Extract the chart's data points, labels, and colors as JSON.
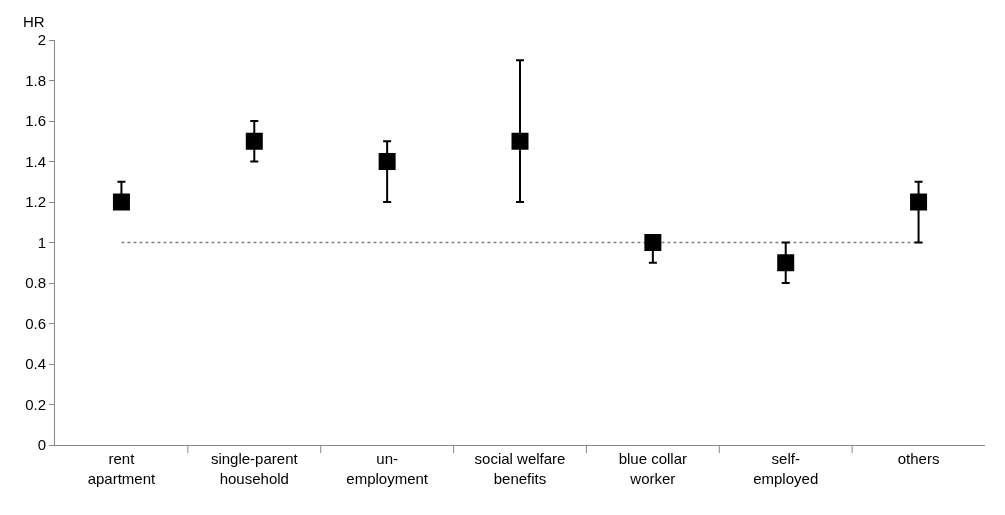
{
  "chart_data": {
    "type": "scatter",
    "ylabel": "HR",
    "categories": [
      "rent apartment",
      "single-parent household",
      "un-employment",
      "social welfare benefits",
      "blue collar worker",
      "self-employed",
      "others"
    ],
    "values": [
      1.2,
      1.5,
      1.4,
      1.5,
      1.0,
      0.9,
      1.2
    ],
    "errors": [
      [
        1.2,
        1.3
      ],
      [
        1.4,
        1.6
      ],
      [
        1.2,
        1.5
      ],
      [
        1.2,
        1.9
      ],
      [
        0.9,
        1.0
      ],
      [
        0.8,
        1.0
      ],
      [
        1.0,
        1.3
      ]
    ],
    "color": "#000000",
    "marker": "square",
    "ylim": [
      0,
      2
    ],
    "yticks": [
      0,
      0.2,
      0.4,
      0.6,
      0.8,
      1,
      1.2,
      1.4,
      1.6,
      1.8,
      2
    ],
    "grid": false,
    "ref_lines": [
      {
        "axis": "y",
        "value": 1,
        "color": "#808080",
        "line_style": "dotted"
      }
    ]
  }
}
